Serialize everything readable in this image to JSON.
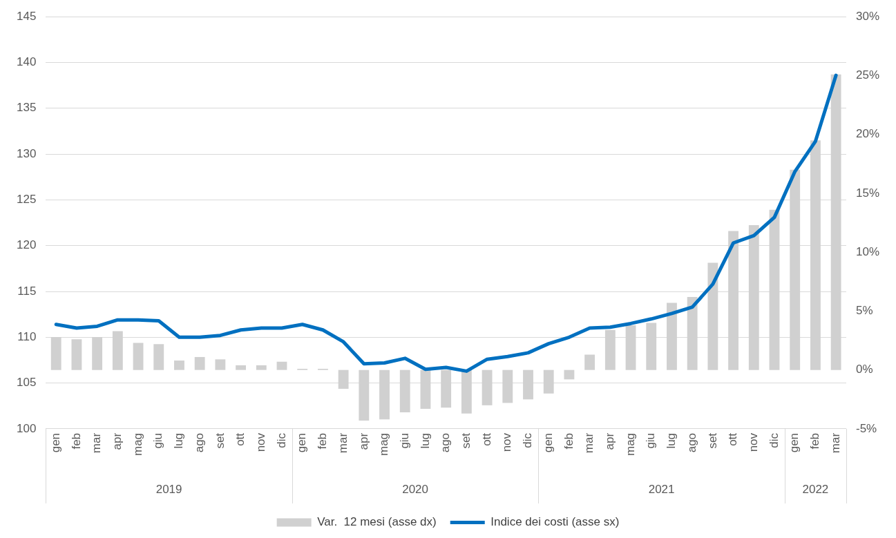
{
  "chart_data": {
    "type": "bar",
    "categories": [
      "gen",
      "feb",
      "mar",
      "apr",
      "mag",
      "giu",
      "lug",
      "ago",
      "set",
      "ott",
      "nov",
      "dic",
      "gen",
      "feb",
      "mar",
      "apr",
      "mag",
      "giu",
      "lug",
      "ago",
      "set",
      "ott",
      "nov",
      "dic",
      "gen",
      "feb",
      "mar",
      "apr",
      "mag",
      "giu",
      "lug",
      "ago",
      "set",
      "ott",
      "nov",
      "dic",
      "gen",
      "feb",
      "mar"
    ],
    "annotations": [
      "2019",
      "2020",
      "2021",
      "2022"
    ],
    "series": [
      {
        "name": "Var.  12 mesi (asse dx)",
        "axis": "y2",
        "color": "#d0d0d0",
        "values": [
          2.8,
          2.6,
          2.8,
          3.3,
          2.3,
          2.2,
          0.8,
          1.1,
          0.9,
          0.4,
          0.4,
          0.7,
          0.1,
          0.1,
          -1.6,
          -4.3,
          -4.2,
          -3.6,
          -3.3,
          -3.2,
          -3.7,
          -3.0,
          -2.8,
          -2.5,
          -2.0,
          -0.8,
          1.3,
          3.4,
          3.8,
          4.0,
          5.7,
          6.2,
          9.1,
          11.8,
          12.3,
          13.6,
          17.0,
          19.5,
          25.1
        ]
      },
      {
        "name": "Indice dei costi (asse sx)",
        "type": "line",
        "color": "#0070c0",
        "values": [
          111.4,
          111.0,
          111.2,
          111.9,
          111.9,
          111.8,
          110.0,
          110.0,
          110.2,
          110.8,
          111.0,
          111.0,
          111.4,
          110.8,
          109.5,
          107.1,
          107.2,
          107.7,
          106.5,
          106.7,
          106.3,
          107.6,
          107.9,
          108.3,
          109.3,
          110.0,
          111.0,
          111.1,
          111.5,
          112.0,
          112.6,
          113.3,
          115.8,
          120.3,
          121.1,
          123.1,
          128.1,
          131.4,
          138.6
        ]
      }
    ],
    "ylim": [
      100,
      145
    ],
    "yticks": [
      100,
      105,
      110,
      115,
      120,
      125,
      130,
      135,
      140,
      145
    ],
    "y2lim": [
      -5,
      30
    ],
    "y2ticks": [
      {
        "value": -5,
        "label": "-5%"
      },
      {
        "value": 0,
        "label": "0%"
      },
      {
        "value": 5,
        "label": "5%"
      },
      {
        "value": 10,
        "label": "10%"
      },
      {
        "value": 15,
        "label": "15%"
      },
      {
        "value": 20,
        "label": "20%"
      },
      {
        "value": 25,
        "label": "25%"
      },
      {
        "value": 30,
        "label": "30%"
      }
    ],
    "grid": "y",
    "legend": "bottom",
    "marker": "none",
    "line_style": "solid"
  }
}
